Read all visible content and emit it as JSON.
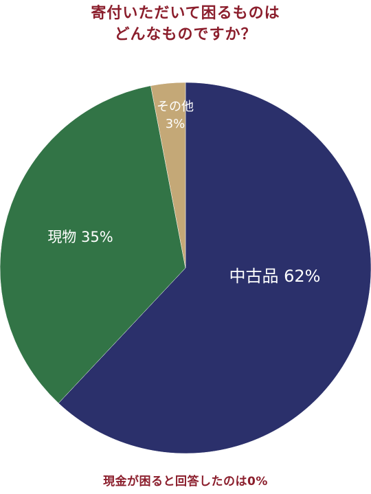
{
  "chart_data": {
    "type": "pie",
    "title_lines": [
      "寄付いただいて困るものは",
      "どんなものですか？"
    ],
    "slices": [
      {
        "label": "中古品",
        "value": 62,
        "value_label": "62%",
        "color": "#2b306b"
      },
      {
        "label": "現物",
        "value": 35,
        "value_label": "35%",
        "color": "#327446"
      },
      {
        "label": "その他",
        "value": 3,
        "value_label": "3%",
        "color": "#c4a877"
      }
    ],
    "footnote": "現金が困ると回答したのは0%"
  }
}
